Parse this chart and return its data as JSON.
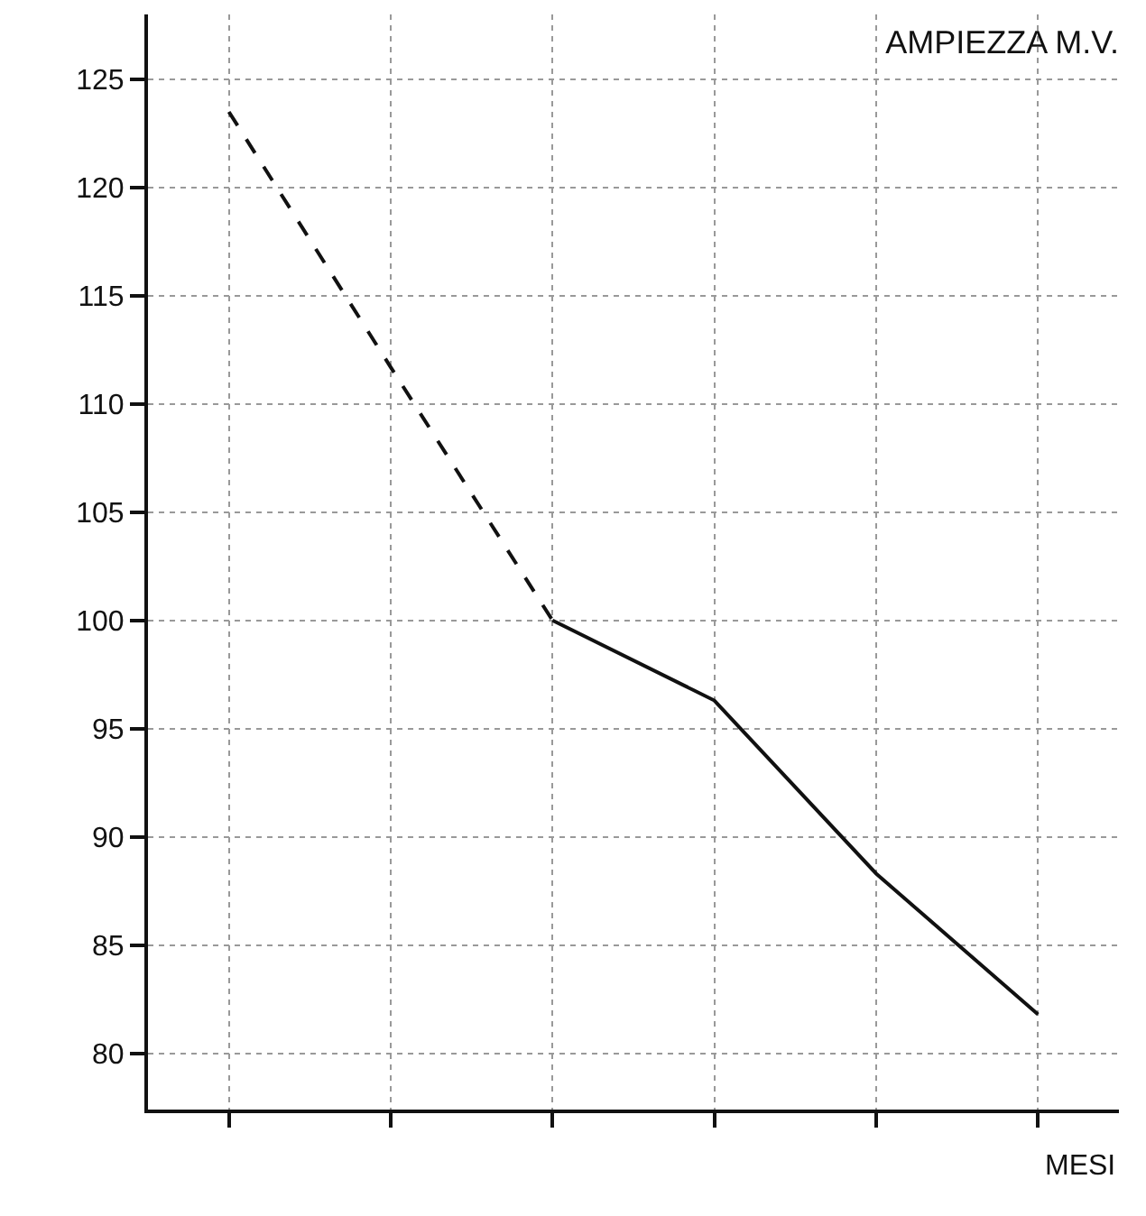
{
  "chart_data": {
    "type": "line",
    "title": "AMPIEZZA M.V.",
    "xlabel": "MESI",
    "categories": [
      null,
      null,
      null,
      null,
      null,
      null
    ],
    "series": [
      {
        "color": "#111111",
        "line_style": "dashed",
        "values": [
          123.5,
          111.7,
          100,
          null,
          null,
          null
        ]
      },
      {
        "color": "#111111",
        "line_style": "solid",
        "values": [
          null,
          null,
          100,
          96.3,
          88.3,
          81.8
        ]
      }
    ],
    "ylim": [
      77.4,
      128
    ],
    "yticks": [
      80,
      85,
      90,
      95,
      100,
      105,
      110,
      115,
      120,
      125
    ],
    "grid": true,
    "marker": "none"
  }
}
